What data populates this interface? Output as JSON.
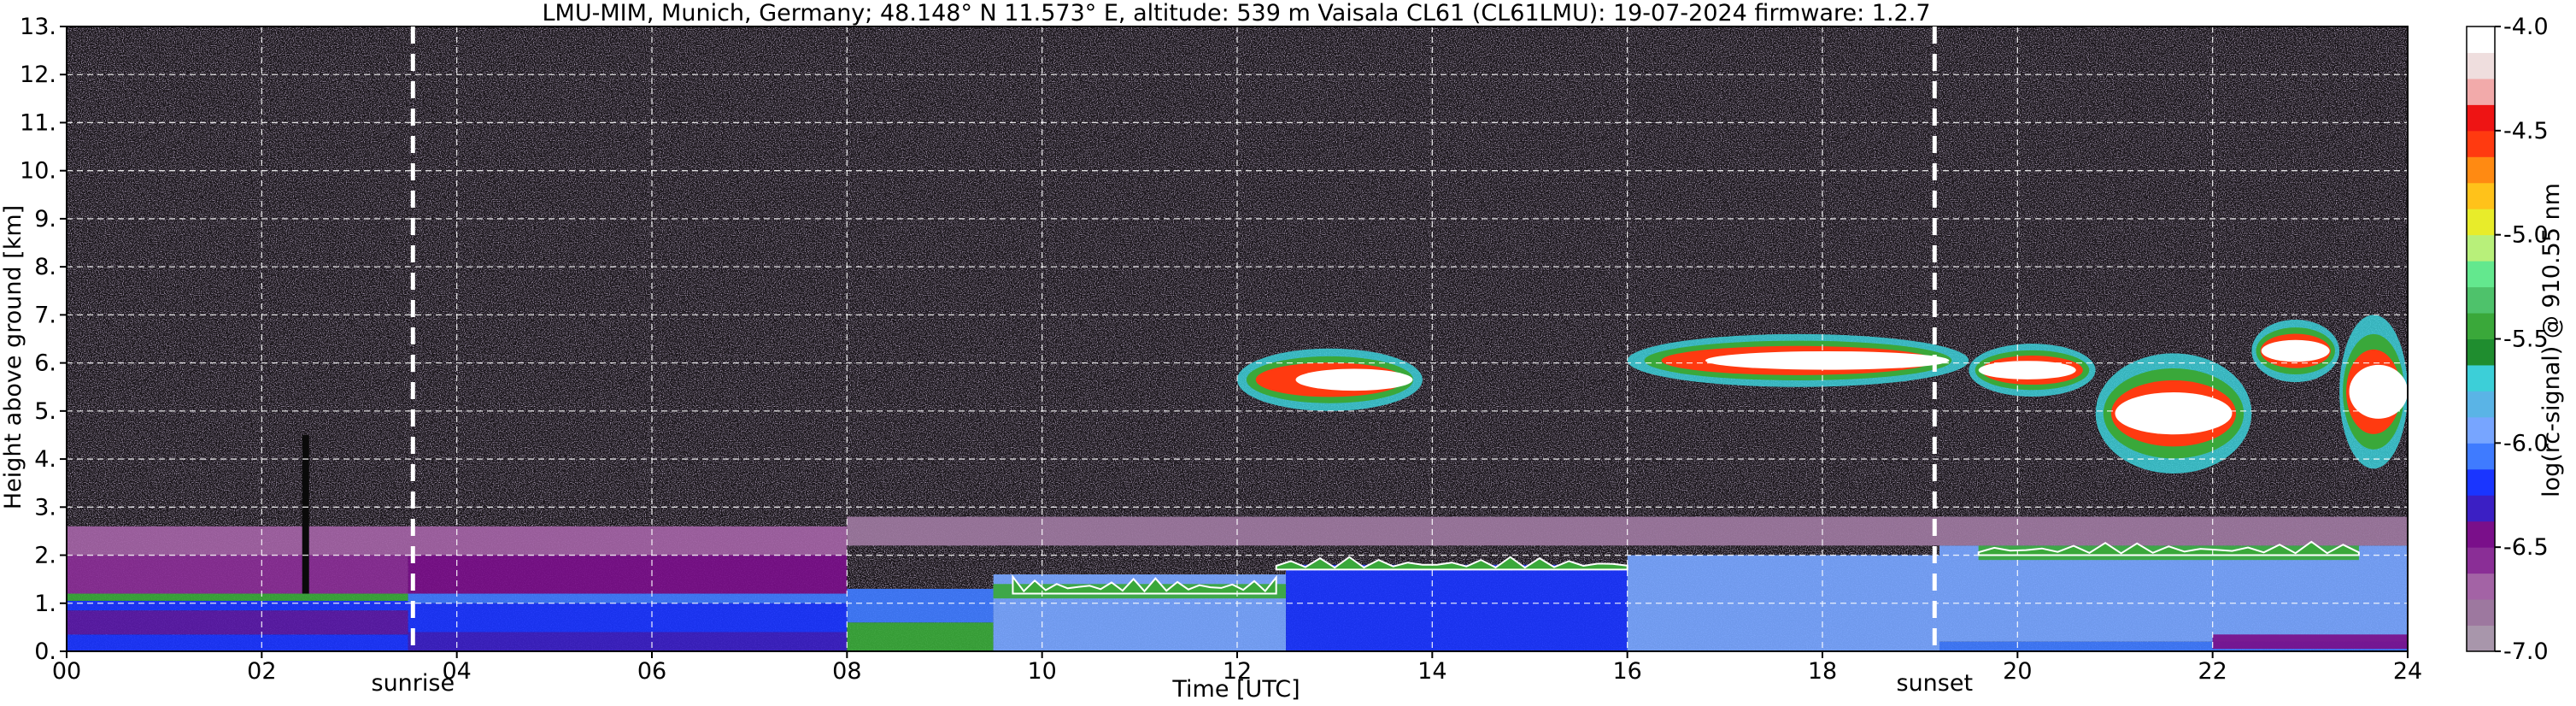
{
  "chart_data": {
    "type": "heatmap",
    "title": "LMU-MIM, Munich, Germany; 48.148° N 11.573° E, altitude: 539 m    Vaisala CL61 (CL61LMU): 19-07-2024    firmware: 1.2.7",
    "xlabel": "Time [UTC]",
    "ylabel": "Height above ground [km]",
    "xlim": [
      0,
      24
    ],
    "ylim": [
      0,
      13
    ],
    "x_ticks": [
      "00",
      "02",
      "04",
      "06",
      "08",
      "10",
      "12",
      "14",
      "16",
      "18",
      "20",
      "22",
      "24"
    ],
    "y_ticks": [
      "0.",
      "1.",
      "2.",
      "3.",
      "4.",
      "5.",
      "6.",
      "7.",
      "8.",
      "9.",
      "10.",
      "11.",
      "12.",
      "13."
    ],
    "grid": true,
    "colorbar": {
      "label": "log(rc-signal) @ 910.55 nm",
      "range": [
        -7.0,
        -4.0
      ],
      "ticks": [
        "-4.0",
        "-4.5",
        "-5.0",
        "-5.5",
        "-6.0",
        "-6.5",
        "-7.0"
      ],
      "colors": [
        "#a896ab",
        "#9d789f",
        "#a363a5",
        "#8a2e96",
        "#7a0f8a",
        "#3b1fc4",
        "#1a35ff",
        "#3f7bff",
        "#77a5ff",
        "#5ab4e6",
        "#3ccfd8",
        "#1f8d2f",
        "#3aa83a",
        "#4ec26b",
        "#63e88e",
        "#b8f07a",
        "#e8ec2a",
        "#ffc21a",
        "#ff8a12",
        "#ff3a10",
        "#ee1414",
        "#f2aaaa",
        "#efdede",
        "#ffffff"
      ]
    },
    "markers": [
      {
        "label": "sunrise",
        "x": 3.55
      },
      {
        "label": "sunset",
        "x": 19.15
      }
    ],
    "layers": [
      {
        "start": 0,
        "end": 3.5,
        "bottom": 0.0,
        "top": 0.35,
        "color": "#1a35ff"
      },
      {
        "start": 0,
        "end": 3.5,
        "bottom": 0.35,
        "top": 0.85,
        "color": "#5a1aa8"
      },
      {
        "start": 0,
        "end": 3.5,
        "bottom": 0.85,
        "top": 1.05,
        "color": "#1a35ff"
      },
      {
        "start": 0,
        "end": 3.5,
        "bottom": 1.05,
        "top": 1.2,
        "color": "#3aa83a"
      },
      {
        "start": 0,
        "end": 3.5,
        "bottom": 1.2,
        "top": 2.0,
        "color": "#8a2e96"
      },
      {
        "start": 0,
        "end": 8,
        "bottom": 2.0,
        "top": 2.6,
        "color": "#a363a5"
      },
      {
        "start": 3.5,
        "end": 8,
        "bottom": 0.0,
        "top": 0.4,
        "color": "#3b1fc4"
      },
      {
        "start": 3.5,
        "end": 8,
        "bottom": 0.4,
        "top": 1.0,
        "color": "#1a35ff"
      },
      {
        "start": 3.5,
        "end": 8,
        "bottom": 1.0,
        "top": 1.2,
        "color": "#3f7bff"
      },
      {
        "start": 3.5,
        "end": 8,
        "bottom": 1.2,
        "top": 2.0,
        "color": "#7a0f8a"
      },
      {
        "start": 8,
        "end": 9.5,
        "bottom": 0.0,
        "top": 0.6,
        "color": "#3aa83a"
      },
      {
        "start": 8,
        "end": 9.5,
        "bottom": 0.6,
        "top": 1.3,
        "color": "#3f7bff"
      },
      {
        "start": 9.5,
        "end": 12.5,
        "bottom": 0.0,
        "top": 1.6,
        "color": "#77a5ff"
      },
      {
        "start": 9.5,
        "end": 12.5,
        "bottom": 1.1,
        "top": 1.4,
        "color": "#3aa83a"
      },
      {
        "start": 12.5,
        "end": 16,
        "bottom": 0.0,
        "top": 1.8,
        "color": "#1a35ff"
      },
      {
        "start": 16,
        "end": 19.2,
        "bottom": 0.0,
        "top": 2.0,
        "color": "#77a5ff"
      },
      {
        "start": 19.2,
        "end": 24,
        "bottom": 0.2,
        "top": 2.2,
        "color": "#77a5ff"
      },
      {
        "start": 19.2,
        "end": 24,
        "bottom": 0.0,
        "top": 0.2,
        "color": "#3f7bff"
      },
      {
        "start": 19.6,
        "end": 23.5,
        "bottom": 1.9,
        "top": 2.2,
        "color": "#3aa83a"
      },
      {
        "start": 22,
        "end": 24,
        "bottom": 0.05,
        "top": 0.35,
        "color": "#7a0f8a"
      },
      {
        "start": 8,
        "end": 24,
        "bottom": 2.2,
        "top": 2.8,
        "color": "#9d789f"
      }
    ],
    "clouds": [
      {
        "start": 12.0,
        "end": 13.9,
        "bottom": 5.0,
        "top": 6.3,
        "core": [
          12.6,
          13.8
        ]
      },
      {
        "start": 16.0,
        "end": 19.5,
        "bottom": 5.5,
        "top": 6.6,
        "core": [
          16.8,
          19.3
        ]
      },
      {
        "start": 19.5,
        "end": 20.8,
        "bottom": 5.3,
        "top": 6.4,
        "core": [
          19.6,
          20.6
        ]
      },
      {
        "start": 20.8,
        "end": 22.4,
        "bottom": 3.7,
        "top": 6.2,
        "core": [
          21.0,
          22.2
        ]
      },
      {
        "start": 22.4,
        "end": 23.3,
        "bottom": 5.6,
        "top": 6.9,
        "core": [
          22.5,
          23.2
        ]
      },
      {
        "start": 23.3,
        "end": 24.0,
        "bottom": 3.8,
        "top": 7.0,
        "core": [
          23.4,
          24.0
        ]
      }
    ],
    "cloud_tops": [
      {
        "start": 9.7,
        "end": 12.4,
        "bottom": 1.2,
        "top": 1.7
      },
      {
        "start": 12.4,
        "end": 16.0,
        "bottom": 1.7,
        "top": 2.1
      },
      {
        "start": 19.6,
        "end": 23.5,
        "bottom": 2.0,
        "top": 2.4
      }
    ],
    "plumes": [
      {
        "x": 2.45,
        "bottom": 1.2,
        "top": 4.5
      }
    ]
  }
}
